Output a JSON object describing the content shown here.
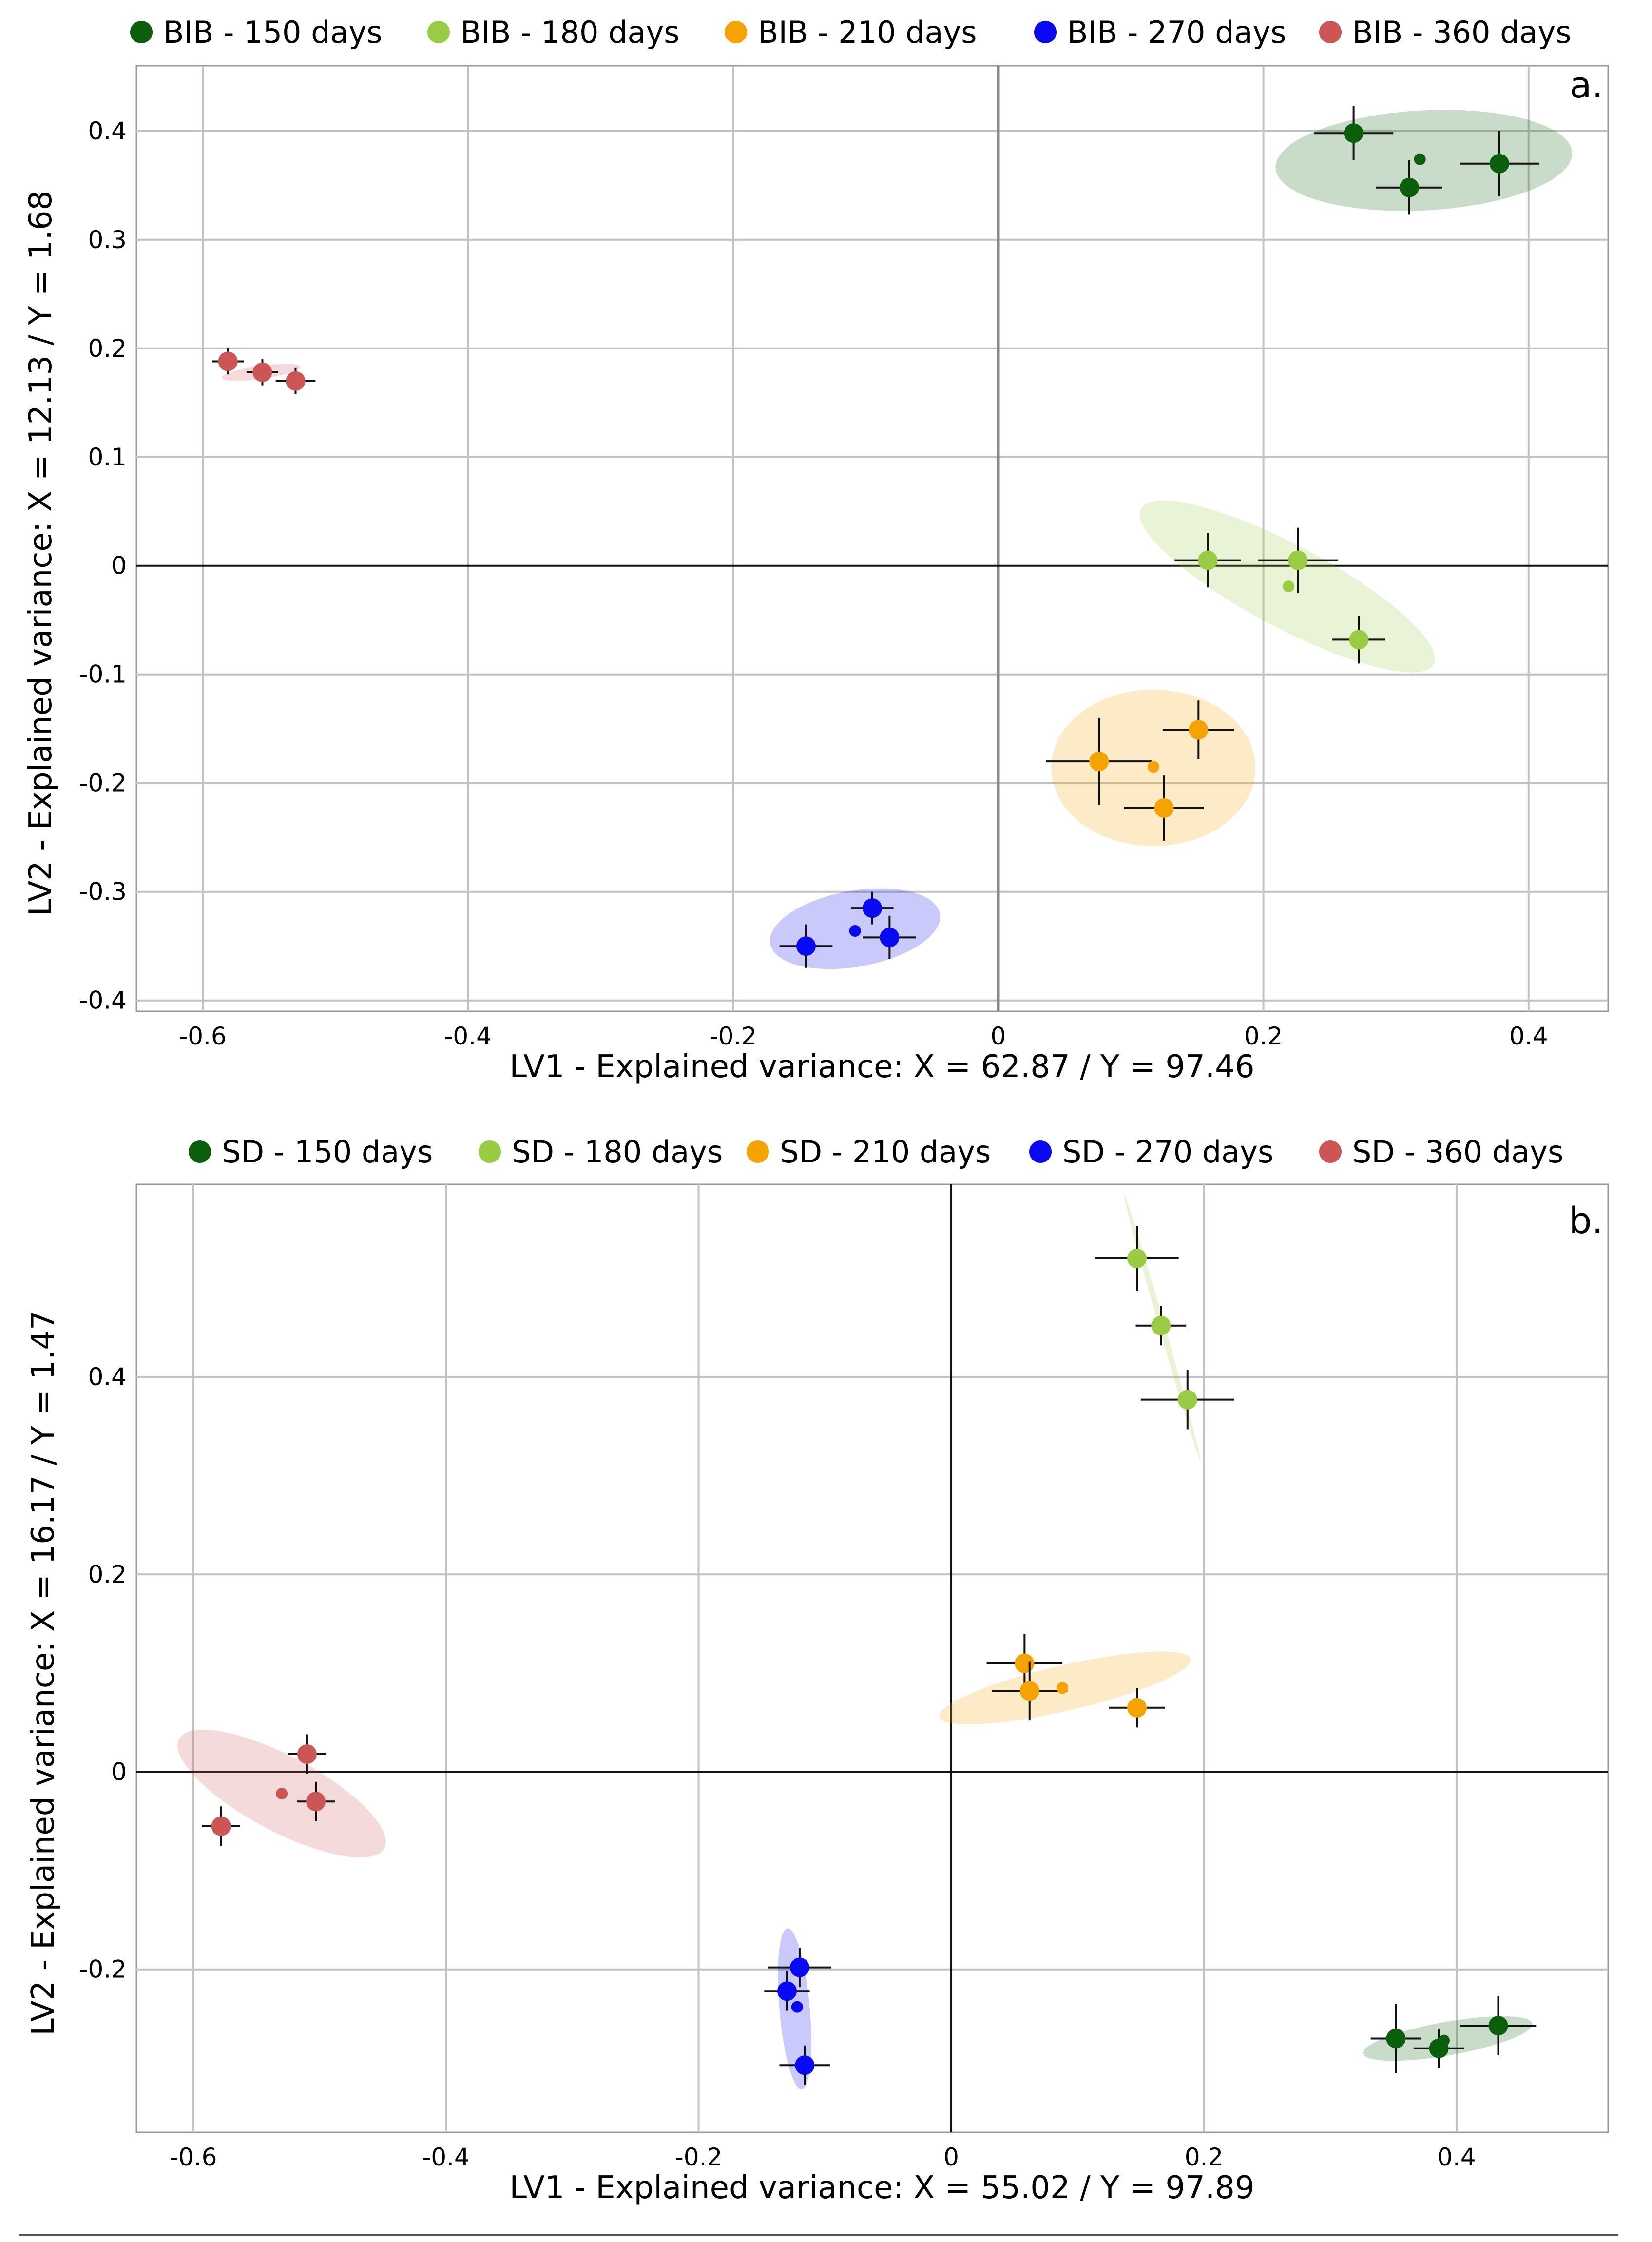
{
  "chart_data": [
    {
      "type": "scatter",
      "panel_label": "a.",
      "xlabel": "LV1 - Explained variance: X = 62.87 / Y = 97.46",
      "ylabel": "LV2 - Explained variance: X = 12.13 / Y = 1.68",
      "xlim": [
        -0.65,
        0.46
      ],
      "ylim": [
        -0.41,
        0.46
      ],
      "xticks": [
        -0.6,
        -0.4,
        -0.2,
        0,
        0.2,
        0.4
      ],
      "xtick_labels": [
        "-0.6",
        "-0.4",
        "-0.2",
        "0",
        "0.2",
        "0.4"
      ],
      "yticks": [
        -0.4,
        -0.3,
        -0.2,
        -0.1,
        0,
        0.1,
        0.2,
        0.3,
        0.4
      ],
      "ytick_labels": [
        "-0.4",
        "-0.3",
        "-0.2",
        "-0.1",
        "0",
        "0.1",
        "0.2",
        "0.3",
        "0.4"
      ],
      "grid": true,
      "legend_position": "top",
      "series": [
        {
          "name": "BIB - 150 days",
          "color": "#0b5e0b",
          "points": [
            {
              "x": 0.268,
              "y": 0.398,
              "ex": 0.03,
              "ey": 0.025
            },
            {
              "x": 0.31,
              "y": 0.348,
              "ex": 0.025,
              "ey": 0.025
            },
            {
              "x": 0.378,
              "y": 0.37,
              "ex": 0.03,
              "ey": 0.03
            }
          ],
          "centroid": {
            "x": 0.318,
            "y": 0.374
          },
          "ellipse": {
            "cx": 0.321,
            "cy": 0.373,
            "rx": 0.112,
            "ry": 0.046,
            "angle": -3
          }
        },
        {
          "name": "BIB - 180 days",
          "color": "#99cc44",
          "points": [
            {
              "x": 0.158,
              "y": 0.005,
              "ex": 0.025,
              "ey": 0.025
            },
            {
              "x": 0.226,
              "y": 0.005,
              "ex": 0.03,
              "ey": 0.03
            },
            {
              "x": 0.272,
              "y": -0.068,
              "ex": 0.02,
              "ey": 0.022
            }
          ],
          "centroid": {
            "x": 0.219,
            "y": -0.019
          },
          "ellipse": {
            "cx": 0.218,
            "cy": -0.019,
            "rx": 0.125,
            "ry": 0.038,
            "angle": 28
          }
        },
        {
          "name": "BIB - 210 days",
          "color": "#f5a300",
          "points": [
            {
              "x": 0.076,
              "y": -0.18,
              "ex": 0.04,
              "ey": 0.04
            },
            {
              "x": 0.151,
              "y": -0.151,
              "ex": 0.027,
              "ey": 0.027
            },
            {
              "x": 0.125,
              "y": -0.223,
              "ex": 0.03,
              "ey": 0.03
            }
          ],
          "centroid": {
            "x": 0.117,
            "y": -0.185
          },
          "ellipse": {
            "cx": 0.117,
            "cy": -0.186,
            "rx": 0.077,
            "ry": 0.072,
            "angle": 0
          }
        },
        {
          "name": "BIB - 270 days",
          "color": "#0a0af2",
          "points": [
            {
              "x": -0.145,
              "y": -0.35,
              "ex": 0.02,
              "ey": 0.02
            },
            {
              "x": -0.095,
              "y": -0.315,
              "ex": 0.016,
              "ey": 0.015
            },
            {
              "x": -0.082,
              "y": -0.342,
              "ex": 0.02,
              "ey": 0.02
            }
          ],
          "centroid": {
            "x": -0.108,
            "y": -0.336
          },
          "ellipse": {
            "cx": -0.108,
            "cy": -0.334,
            "rx": 0.065,
            "ry": 0.035,
            "angle": -10
          }
        },
        {
          "name": "BIB - 360 days",
          "color": "#cc5555",
          "points": [
            {
              "x": -0.581,
              "y": 0.188,
              "ex": 0.012,
              "ey": 0.012
            },
            {
              "x": -0.555,
              "y": 0.178,
              "ex": 0.012,
              "ey": 0.012
            },
            {
              "x": -0.53,
              "y": 0.17,
              "ex": 0.015,
              "ey": 0.012
            }
          ],
          "centroid": {
            "x": -0.556,
            "y": 0.178
          },
          "ellipse": {
            "cx": -0.556,
            "cy": 0.178,
            "rx": 0.03,
            "ry": 0.006,
            "angle": -8
          }
        }
      ]
    },
    {
      "type": "scatter",
      "panel_label": "b.",
      "xlabel": "LV1 - Explained variance: X = 55.02 / Y = 97.89",
      "ylabel": "LV2 - Explained variance: X = 16.17 / Y = 1.47",
      "xlim": [
        -0.645,
        0.52
      ],
      "ylim": [
        -0.365,
        0.595
      ],
      "xticks": [
        -0.6,
        -0.4,
        -0.2,
        0,
        0.2,
        0.4
      ],
      "xtick_labels": [
        "-0.6",
        "-0.4",
        "-0.2",
        "0",
        "0.2",
        "0.4"
      ],
      "yticks": [
        -0.2,
        0,
        0.2,
        0.4
      ],
      "ytick_labels": [
        "-0.2",
        "0",
        "0.2",
        "0.4"
      ],
      "grid": true,
      "legend_position": "top",
      "series": [
        {
          "name": "SD - 150 days",
          "color": "#0b5e0b",
          "points": [
            {
              "x": 0.352,
              "y": -0.27,
              "ex": 0.02,
              "ey": 0.035
            },
            {
              "x": 0.386,
              "y": -0.28,
              "ex": 0.02,
              "ey": 0.02
            },
            {
              "x": 0.433,
              "y": -0.257,
              "ex": 0.03,
              "ey": 0.03
            }
          ],
          "centroid": {
            "x": 0.39,
            "y": -0.272
          },
          "ellipse": {
            "cx": 0.393,
            "cy": -0.27,
            "rx": 0.068,
            "ry": 0.017,
            "angle": -10
          }
        },
        {
          "name": "SD - 180 days",
          "color": "#99cc44",
          "points": [
            {
              "x": 0.147,
              "y": 0.52,
              "ex": 0.033,
              "ey": 0.033
            },
            {
              "x": 0.166,
              "y": 0.452,
              "ex": 0.02,
              "ey": 0.02
            },
            {
              "x": 0.187,
              "y": 0.377,
              "ex": 0.037,
              "ey": 0.03
            }
          ],
          "centroid": {
            "x": 0.167,
            "y": 0.45
          },
          "ellipse": {
            "cx": 0.167,
            "cy": 0.45,
            "rx": 0.11,
            "ry": 0.003,
            "angle": 74
          }
        },
        {
          "name": "SD - 210 days",
          "color": "#f5a300",
          "points": [
            {
              "x": 0.058,
              "y": 0.11,
              "ex": 0.03,
              "ey": 0.03
            },
            {
              "x": 0.062,
              "y": 0.082,
              "ex": 0.03,
              "ey": 0.03
            },
            {
              "x": 0.147,
              "y": 0.065,
              "ex": 0.022,
              "ey": 0.02
            }
          ],
          "centroid": {
            "x": 0.088,
            "y": 0.085
          },
          "ellipse": {
            "cx": 0.09,
            "cy": 0.085,
            "rx": 0.102,
            "ry": 0.023,
            "angle": -13
          }
        },
        {
          "name": "SD - 270 days",
          "color": "#0a0af2",
          "points": [
            {
              "x": -0.13,
              "y": -0.222,
              "ex": 0.018,
              "ey": 0.02
            },
            {
              "x": -0.12,
              "y": -0.198,
              "ex": 0.025,
              "ey": 0.02
            },
            {
              "x": -0.116,
              "y": -0.297,
              "ex": 0.02,
              "ey": 0.02
            }
          ],
          "centroid": {
            "x": -0.122,
            "y": -0.238
          },
          "ellipse": {
            "cx": -0.124,
            "cy": -0.24,
            "rx": 0.012,
            "ry": 0.082,
            "angle": -5
          }
        },
        {
          "name": "SD - 360 days",
          "color": "#cc5555",
          "points": [
            {
              "x": -0.578,
              "y": -0.055,
              "ex": 0.015,
              "ey": 0.02
            },
            {
              "x": -0.51,
              "y": 0.018,
              "ex": 0.015,
              "ey": 0.02
            },
            {
              "x": -0.503,
              "y": -0.03,
              "ex": 0.015,
              "ey": 0.02
            }
          ],
          "centroid": {
            "x": -0.53,
            "y": -0.022
          },
          "ellipse": {
            "cx": -0.53,
            "cy": -0.022,
            "rx": 0.092,
            "ry": 0.038,
            "angle": 28
          }
        }
      ]
    }
  ]
}
